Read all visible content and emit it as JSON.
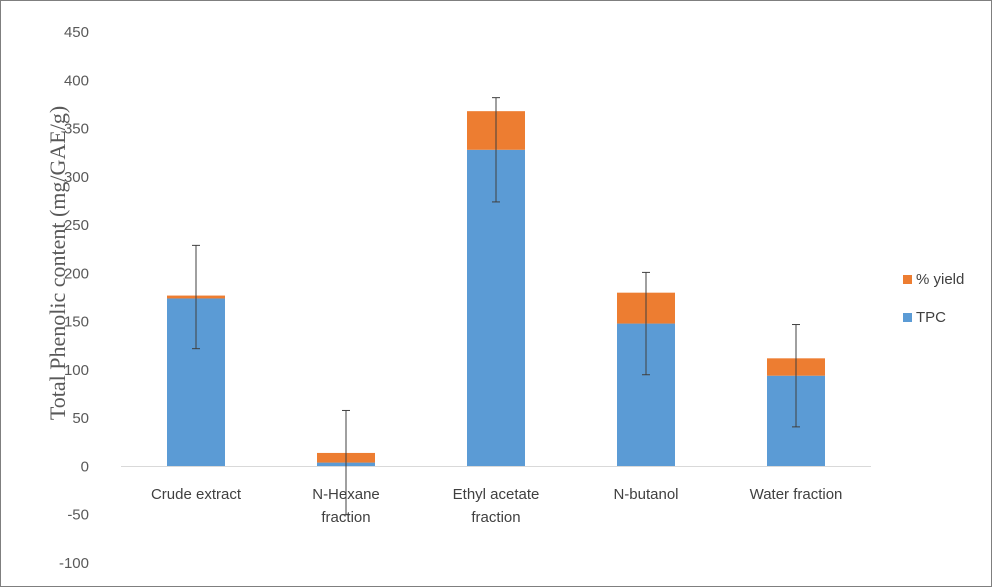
{
  "chart_data": {
    "type": "bar",
    "stacked": true,
    "categories": [
      [
        "Crude extract"
      ],
      [
        "N-Hexane",
        "fraction"
      ],
      [
        "Ethyl acetate",
        "fraction"
      ],
      [
        "N-butanol"
      ],
      [
        "Water fraction"
      ]
    ],
    "series": [
      {
        "name": "TPC",
        "values": [
          174,
          4,
          328,
          148,
          94
        ],
        "color": "#5b9bd5"
      },
      {
        "name": "% yield",
        "values": [
          3,
          10,
          40,
          32,
          18
        ],
        "color": "#ed7d31"
      }
    ],
    "error_bars": [
      {
        "low": 122,
        "high": 229
      },
      {
        "low": -50,
        "high": 58
      },
      {
        "low": 274,
        "high": 382
      },
      {
        "low": 95,
        "high": 201
      },
      {
        "low": 41,
        "high": 147
      }
    ],
    "ylabel": "Total Phenolic content (mg/GAE/g)",
    "xlabel": "",
    "title": "",
    "ylim": [
      -100,
      450
    ],
    "yticks": [
      -100,
      -50,
      0,
      50,
      100,
      150,
      200,
      250,
      300,
      350,
      400,
      450
    ],
    "grid": false,
    "legend": "right",
    "legend_order": [
      "% yield",
      "TPC"
    ]
  }
}
